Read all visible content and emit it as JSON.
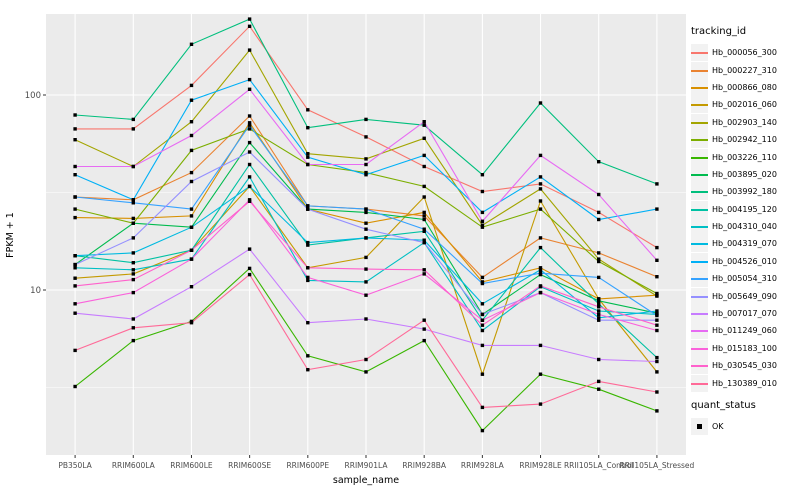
{
  "chart_data": {
    "type": "line",
    "title": "",
    "xlabel": "sample_name",
    "ylabel": "FPKM + 1",
    "y_scale": "log10",
    "y_ticks": [
      10,
      100
    ],
    "y_minor_ticks": [
      3.1623,
      31.623
    ],
    "ylim": [
      1.5,
      265
    ],
    "grid": "on",
    "legend_position": "right",
    "legend_title": "tracking_id",
    "marker": "black-square",
    "colors": {
      "panel_background": "#EBEBEB",
      "gridline": "#FFFFFF",
      "axis_text": "#4D4D4D",
      "axis_title": "#000000",
      "marker": "#000000",
      "legend_key_background": "#F2F2F2"
    },
    "categories": [
      "PB350LA",
      "RRIM600LA",
      "RRIM600LE",
      "RRIM600SE",
      "RRIM600PE",
      "RRIM901LA",
      "RRIM928BA",
      "RRIM928LA",
      "RRIM928LE",
      "RRII105LA_Control",
      "RRII105LA_Stressed"
    ],
    "series": [
      {
        "name": "Hb_000056_300",
        "color": "#F8766D",
        "values": [
          67,
          67,
          112,
          225,
          84,
          61,
          43,
          32,
          35,
          25,
          16.5
        ]
      },
      {
        "name": "Hb_000227_310",
        "color": "#EA8331",
        "values": [
          30,
          29,
          40,
          78,
          27,
          26,
          24,
          11.6,
          18.5,
          15.5,
          11.7
        ]
      },
      {
        "name": "Hb_000866_080",
        "color": "#D89000",
        "values": [
          23.5,
          23.3,
          24,
          72,
          26,
          22,
          25,
          11,
          13,
          9,
          9.4
        ]
      },
      {
        "name": "Hb_002016_060",
        "color": "#C49A00",
        "values": [
          11.5,
          12.1,
          16,
          34,
          13,
          14.7,
          30,
          3.7,
          28.6,
          9,
          3.8
        ]
      },
      {
        "name": "Hb_002903_140",
        "color": "#A3A500",
        "values": [
          59,
          43,
          73,
          170,
          50,
          47,
          60,
          21.5,
          33,
          14.4,
          9.3
        ]
      },
      {
        "name": "Hb_002942_110",
        "color": "#7CAE00",
        "values": [
          26,
          22,
          52,
          67,
          44,
          40,
          34,
          21,
          26,
          14,
          9.6
        ]
      },
      {
        "name": "Hb_003226_110",
        "color": "#39B600",
        "values": [
          3.2,
          5.5,
          6.9,
          12.9,
          4.6,
          3.8,
          5.5,
          1.9,
          3.7,
          3.1,
          2.4
        ]
      },
      {
        "name": "Hb_003895_020",
        "color": "#00BB4E",
        "values": [
          13.5,
          22,
          21,
          57,
          26,
          25,
          23,
          7.5,
          12,
          8.8,
          7.6
        ]
      },
      {
        "name": "Hb_003992_180",
        "color": "#00BF7D",
        "values": [
          79,
          75,
          182,
          245,
          68,
          75,
          70,
          39,
          91,
          45.5,
          35
        ]
      },
      {
        "name": "Hb_004195_120",
        "color": "#00C1A3",
        "values": [
          15,
          13.8,
          16,
          44,
          17,
          18.5,
          20,
          7,
          16.5,
          8.5,
          4.5
        ]
      },
      {
        "name": "Hb_004310_040",
        "color": "#00BFC4",
        "values": [
          13,
          12.7,
          14.4,
          38,
          11.2,
          11,
          17.5,
          6.2,
          10.4,
          7.8,
          7.5
        ]
      },
      {
        "name": "Hb_004319_070",
        "color": "#00BAE0",
        "values": [
          15,
          15.5,
          21,
          34,
          17.5,
          18.5,
          18,
          8.5,
          12.7,
          7.2,
          7.8
        ]
      },
      {
        "name": "Hb_004526_010",
        "color": "#00B0F6",
        "values": [
          39,
          29,
          94,
          120,
          48,
          39,
          49,
          25,
          38,
          23,
          26
        ]
      },
      {
        "name": "Hb_005054_310",
        "color": "#35A2FF",
        "values": [
          30,
          28,
          26,
          70,
          27,
          26,
          20.5,
          10.8,
          12.2,
          11.6,
          7.4
        ]
      },
      {
        "name": "Hb_005649_090",
        "color": "#9590FF",
        "values": [
          13.5,
          18.5,
          36,
          51,
          26,
          20.5,
          17.5,
          7.5,
          9.7,
          7,
          7
        ]
      },
      {
        "name": "Hb_007017_070",
        "color": "#C77CFF",
        "values": [
          7.6,
          7.1,
          10.4,
          16.2,
          6.8,
          7.1,
          6.3,
          5.2,
          5.2,
          4.4,
          4.3
        ]
      },
      {
        "name": "Hb_011249_060",
        "color": "#E76BF3",
        "values": [
          43,
          43,
          62,
          107,
          44,
          44,
          73,
          22.5,
          49,
          30.9,
          14.2
        ]
      },
      {
        "name": "Hb_015183_100",
        "color": "#FA62DB",
        "values": [
          8.5,
          9.7,
          14.4,
          29,
          11.6,
          9.4,
          12.1,
          7,
          9.7,
          7.5,
          6.2
        ]
      },
      {
        "name": "Hb_030545_030",
        "color": "#FF61CC",
        "values": [
          10.5,
          11.3,
          16,
          28.5,
          13,
          12.8,
          12.7,
          6.6,
          10.5,
          8.2,
          6.6
        ]
      },
      {
        "name": "Hb_130389_010",
        "color": "#FF6A98",
        "values": [
          4.9,
          6.4,
          6.8,
          12,
          3.9,
          4.4,
          7,
          2.5,
          2.6,
          3.4,
          3
        ]
      }
    ],
    "legend2": {
      "title": "quant_status",
      "items": [
        {
          "label": "OK"
        }
      ]
    }
  }
}
